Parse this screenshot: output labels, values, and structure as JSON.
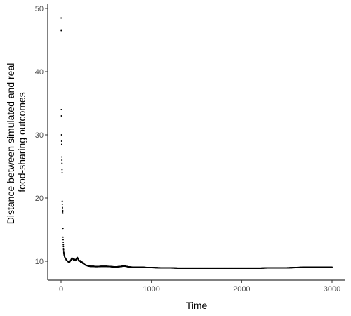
{
  "chart_data": {
    "type": "scatter",
    "title": "",
    "xlabel": "Time",
    "ylabel_lines": [
      "Distance between simulated and real",
      "food-sharing outcomes"
    ],
    "xlim": [
      0,
      3000
    ],
    "ylim": [
      7,
      50
    ],
    "xticks": [
      0,
      1000,
      2000,
      3000
    ],
    "yticks": [
      10,
      20,
      30,
      40,
      50
    ],
    "grid": false,
    "legend": "none",
    "point_color": "#000000",
    "series": [
      {
        "x": [
          1,
          2,
          3,
          4,
          5,
          6,
          7,
          8,
          9,
          10,
          11,
          12,
          13,
          14,
          15,
          16,
          17,
          18,
          19,
          20,
          21,
          22,
          23,
          24,
          25,
          26,
          27,
          28,
          29,
          30,
          31,
          32,
          33,
          34,
          35,
          36,
          37,
          38,
          39,
          40,
          42,
          44,
          46,
          48,
          50,
          52,
          55,
          58,
          62,
          66,
          70,
          75,
          80,
          90,
          100,
          110,
          120,
          130,
          140,
          150,
          160,
          170,
          180,
          190,
          200,
          210,
          220,
          230,
          240,
          250,
          260,
          270,
          280,
          290,
          300,
          320,
          340,
          360,
          380,
          400,
          450,
          500,
          550,
          600,
          650,
          700,
          750,
          800,
          850,
          900,
          950,
          1000,
          1100,
          1200,
          1300,
          1400,
          1500,
          1600,
          1700,
          1800,
          1900,
          2000,
          2100,
          2200,
          2300,
          2400,
          2500,
          2600,
          2700,
          2800,
          2900,
          3000
        ],
        "y": [
          48.5,
          46.5,
          34.0,
          33.0,
          30.0,
          29.0,
          28.5,
          26.5,
          26.0,
          25.5,
          24.5,
          24.0,
          19.5,
          19.0,
          18.5,
          18.3,
          18.0,
          17.8,
          18.0,
          17.6,
          15.2,
          13.8,
          13.4,
          13.0,
          12.6,
          12.3,
          12.0,
          11.8,
          11.6,
          11.4,
          11.3,
          11.2,
          11.1,
          11.0,
          10.95,
          10.9,
          10.85,
          10.8,
          10.75,
          10.7,
          10.6,
          10.55,
          10.5,
          10.45,
          10.4,
          10.4,
          10.3,
          10.2,
          10.15,
          10.1,
          10.0,
          10.0,
          9.9,
          9.8,
          10.0,
          10.2,
          10.5,
          10.4,
          10.2,
          10.3,
          10.1,
          10.4,
          10.6,
          10.3,
          10.0,
          10.1,
          9.8,
          9.9,
          9.7,
          9.6,
          9.5,
          9.4,
          9.35,
          9.3,
          9.25,
          9.2,
          9.2,
          9.2,
          9.15,
          9.15,
          9.2,
          9.2,
          9.15,
          9.1,
          9.15,
          9.25,
          9.1,
          9.05,
          9.05,
          9.05,
          9.0,
          9.0,
          8.95,
          8.95,
          8.9,
          8.9,
          8.9,
          8.9,
          8.9,
          8.9,
          8.9,
          8.9,
          8.9,
          8.9,
          8.95,
          8.95,
          8.95,
          9.0,
          9.05,
          9.05,
          9.05,
          9.05
        ]
      }
    ]
  }
}
